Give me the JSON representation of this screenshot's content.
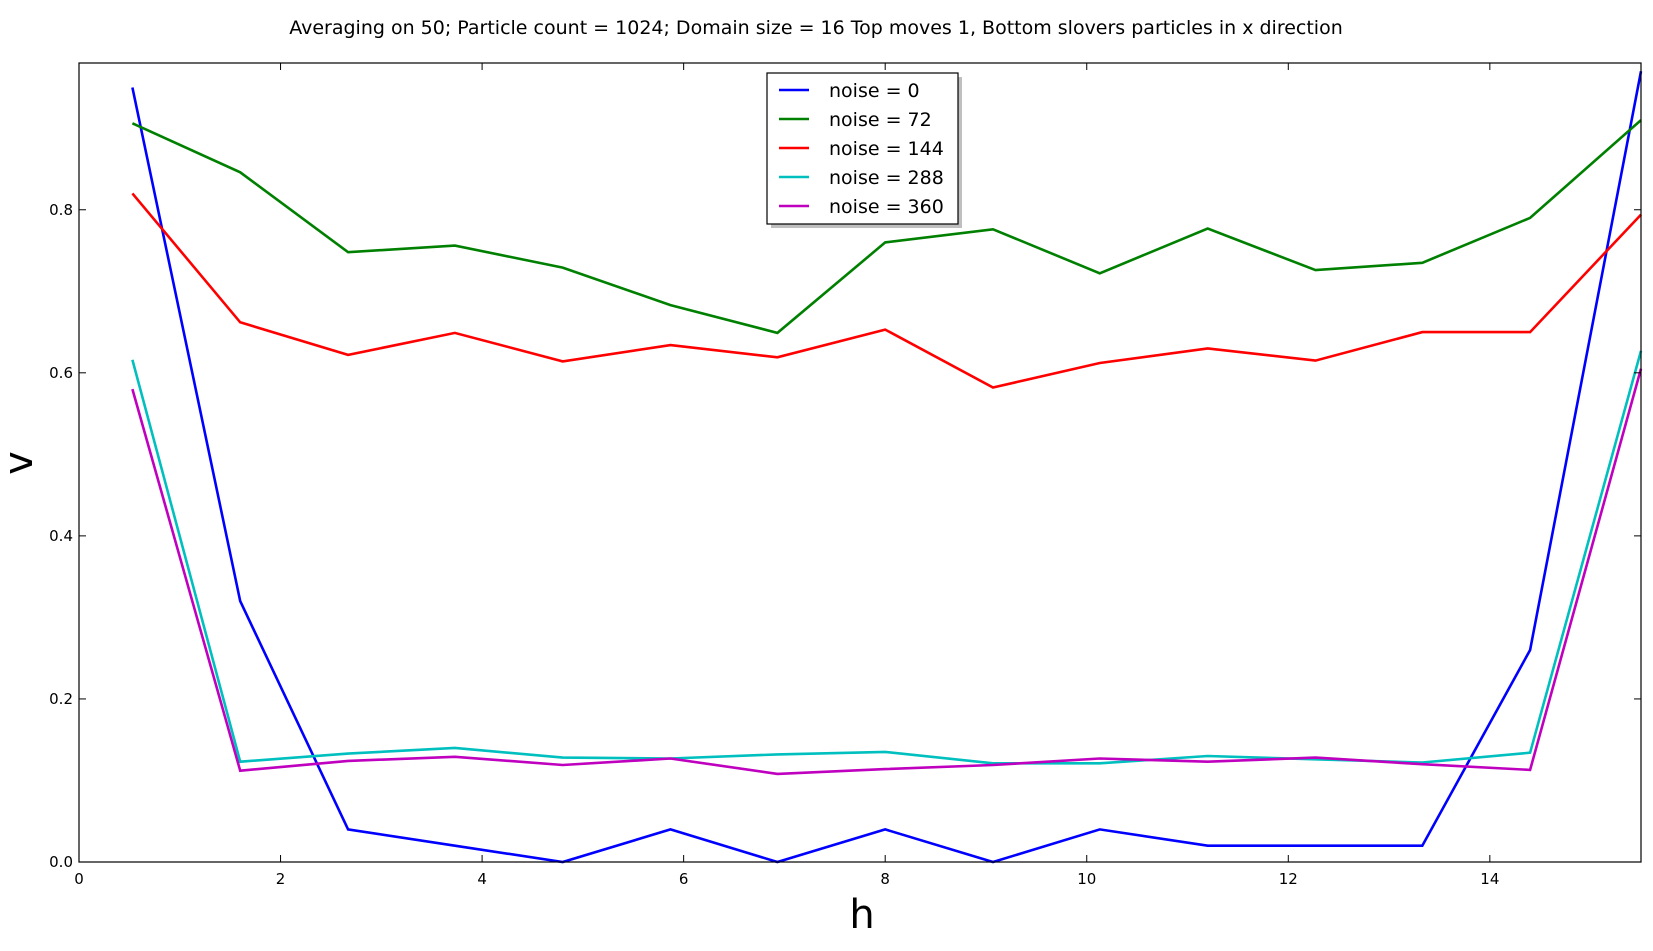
{
  "chart_data": {
    "type": "line",
    "title": "Averaging on 50; Particle count = 1024; Domain size = 16 Top moves 1, Bottom slovers particles in x direction",
    "xlabel": "h",
    "ylabel": "v",
    "xlim": [
      0,
      15.5
    ],
    "ylim": [
      0,
      0.98
    ],
    "xticks": [
      0,
      2,
      4,
      6,
      8,
      10,
      12,
      14
    ],
    "yticks": [
      0.0,
      0.2,
      0.4,
      0.6,
      0.8
    ],
    "xtick_labels": [
      "0",
      "2",
      "4",
      "6",
      "8",
      "10",
      "12",
      "14"
    ],
    "ytick_labels": [
      "0.0",
      "0.2",
      "0.4",
      "0.6",
      "0.8"
    ],
    "grid": false,
    "legend_position": "top-center",
    "x": [
      0.53,
      1.6,
      2.67,
      3.73,
      4.8,
      5.87,
      6.93,
      8.0,
      9.07,
      10.13,
      11.2,
      12.27,
      13.33,
      14.4,
      15.5
    ],
    "series": [
      {
        "name": "noise = 0",
        "color": "#0000ff",
        "values": [
          0.95,
          0.32,
          0.04,
          0.02,
          0.0,
          0.04,
          0.0,
          0.04,
          0.0,
          0.04,
          0.02,
          0.02,
          0.02,
          0.26,
          0.97
        ]
      },
      {
        "name": "noise = 72",
        "color": "#008000",
        "values": [
          0.906,
          0.846,
          0.748,
          0.756,
          0.729,
          0.683,
          0.649,
          0.76,
          0.776,
          0.722,
          0.777,
          0.726,
          0.735,
          0.79,
          0.91
        ]
      },
      {
        "name": "noise = 144",
        "color": "#ff0000",
        "values": [
          0.82,
          0.662,
          0.622,
          0.649,
          0.614,
          0.634,
          0.619,
          0.653,
          0.582,
          0.612,
          0.63,
          0.615,
          0.65,
          0.65,
          0.794
        ]
      },
      {
        "name": "noise = 288",
        "color": "#00bfbf",
        "values": [
          0.616,
          0.123,
          0.133,
          0.14,
          0.128,
          0.127,
          0.132,
          0.135,
          0.121,
          0.121,
          0.13,
          0.126,
          0.122,
          0.134,
          0.627
        ]
      },
      {
        "name": "noise = 360",
        "color": "#bf00bf",
        "values": [
          0.58,
          0.112,
          0.124,
          0.129,
          0.119,
          0.127,
          0.108,
          0.114,
          0.119,
          0.127,
          0.123,
          0.128,
          0.12,
          0.113,
          0.605
        ]
      }
    ]
  }
}
